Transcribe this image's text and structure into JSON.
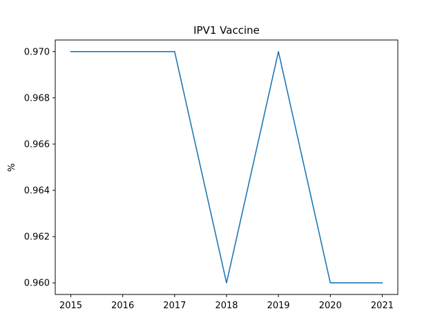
{
  "chart_data": {
    "type": "line",
    "title": "IPV1 Vaccine",
    "xlabel": "",
    "ylabel": "%",
    "x": [
      2015,
      2016,
      2017,
      2018,
      2019,
      2020,
      2021
    ],
    "series": [
      {
        "values": [
          0.97,
          0.97,
          0.97,
          0.96,
          0.97,
          0.96,
          0.96
        ],
        "color": "#1f77b4"
      }
    ],
    "xticks": [
      "2015",
      "2016",
      "2017",
      "2018",
      "2019",
      "2020",
      "2021"
    ],
    "yticks": [
      "0.960",
      "0.962",
      "0.964",
      "0.966",
      "0.968",
      "0.970"
    ],
    "ytick_values": [
      0.96,
      0.962,
      0.964,
      0.966,
      0.968,
      0.97
    ],
    "xlim": [
      2014.7,
      2021.3
    ],
    "ylim": [
      0.9595,
      0.9705
    ],
    "grid": false,
    "legend": "none"
  }
}
